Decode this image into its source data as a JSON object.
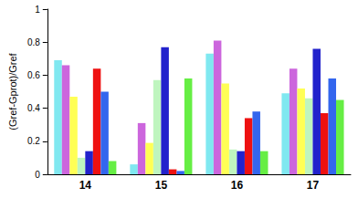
{
  "chart_data": {
    "type": "bar",
    "y_label": "(Gref-Gprot)/Gref",
    "categories": [
      "14",
      "15",
      "16",
      "17"
    ],
    "series": [
      {
        "color": "#80e8f0",
        "values": [
          0.69,
          0.06,
          0.73,
          0.49
        ]
      },
      {
        "color": "#cc66dd",
        "values": [
          0.66,
          0.31,
          0.81,
          0.64
        ]
      },
      {
        "color": "#ffff55",
        "values": [
          0.47,
          0.19,
          0.55,
          0.52
        ]
      },
      {
        "color": "#bff5bf",
        "values": [
          0.1,
          0.57,
          0.15,
          0.46
        ]
      },
      {
        "color": "#2222cc",
        "values": [
          0.14,
          0.77,
          0.14,
          0.76
        ]
      },
      {
        "color": "#ee1111",
        "values": [
          0.64,
          0.03,
          0.34,
          0.37
        ]
      },
      {
        "color": "#3366ee",
        "values": [
          0.5,
          0.02,
          0.38,
          0.58
        ]
      },
      {
        "color": "#66ee44",
        "values": [
          0.08,
          0.58,
          0.14,
          0.45
        ]
      }
    ],
    "ylim": [
      0,
      1
    ],
    "yticks": [
      0,
      0.2,
      0.4,
      0.6,
      0.8,
      1
    ],
    "grid": false
  }
}
